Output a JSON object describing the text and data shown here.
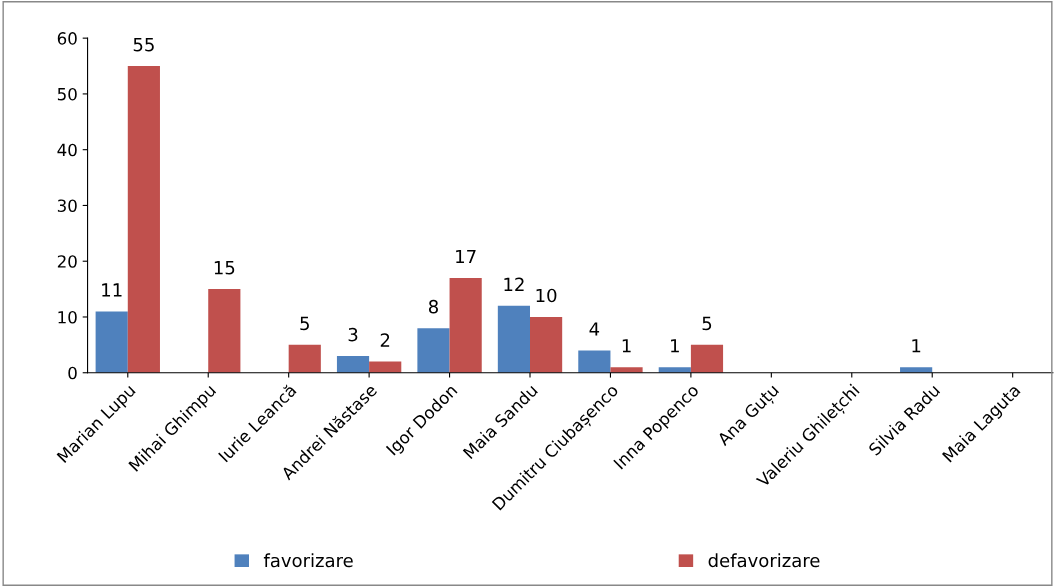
{
  "chart_data": {
    "type": "bar",
    "categories": [
      "Marian Lupu",
      "Mihai Ghimpu",
      "Iurie Leancă",
      "Andrei Năstase",
      "Igor Dodon",
      "Maia Sandu",
      "Dumitru Ciubașenco",
      "Inna Popenco",
      "Ana Guțu",
      "Valeriu Ghilețchi",
      "Silvia Radu",
      "Maia Laguta"
    ],
    "series": [
      {
        "name": "favorizare",
        "color": "#4f81bd",
        "values": [
          11,
          0,
          0,
          3,
          8,
          12,
          4,
          1,
          0,
          0,
          1,
          0
        ],
        "value_labels": [
          "11",
          null,
          null,
          "3",
          "8",
          "12",
          "4",
          "1",
          null,
          null,
          "1",
          null
        ]
      },
      {
        "name": "defavorizare",
        "color": "#c0504d",
        "values": [
          55,
          15,
          5,
          2,
          17,
          10,
          1,
          5,
          0,
          0,
          0,
          0
        ],
        "value_labels": [
          "55",
          "15",
          "5",
          "2",
          "17",
          "10",
          "1",
          "5",
          null,
          null,
          null,
          null
        ]
      }
    ],
    "ylim": [
      0,
      60
    ],
    "yticks": [
      0,
      10,
      20,
      30,
      40,
      50,
      60
    ],
    "grid": false,
    "legend": "bottom"
  }
}
